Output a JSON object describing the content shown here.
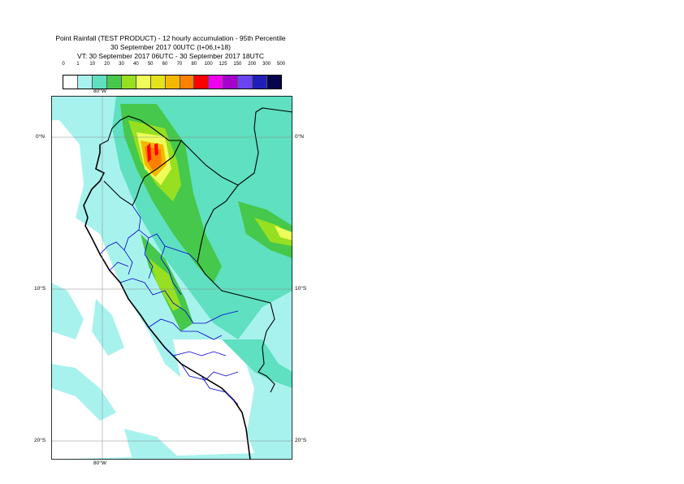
{
  "title": {
    "line1": "Point Rainfall (TEST PRODUCT) - 12 hourly accumulation - 95th Percentile",
    "line2": "30 September 2017 00UTC (t+06,t+18)",
    "line3": "VT: 30 September 2017 06UTC - 30 September 2017 18UTC"
  },
  "legend": {
    "thresholds": [
      "0",
      "1",
      "10",
      "20",
      "30",
      "40",
      "50",
      "60",
      "70",
      "80",
      "100",
      "125",
      "150",
      "200",
      "300",
      "500"
    ],
    "colors": [
      "#ffffff",
      "#a8f2ee",
      "#5fe0c0",
      "#45c84b",
      "#97e021",
      "#eefd5a",
      "#e3e21e",
      "#f5b800",
      "#ff7f00",
      "#ff0000",
      "#ee00ee",
      "#a600cf",
      "#6a44ee",
      "#2020b8",
      "#05054e"
    ]
  },
  "axes": {
    "lon_top": "80°W",
    "lon_bottom": "80°W",
    "lat_0_left": "0°N",
    "lat_0_right": "0°N",
    "lat_10_left": "10°S",
    "lat_10_right": "10°S",
    "lat_20_left": "20°S",
    "lat_20_right": "20°S"
  },
  "map_colors": {
    "sea": "#ffffff",
    "land": "#ffffff",
    "coast": "#000000",
    "regions": "#0000cc"
  }
}
